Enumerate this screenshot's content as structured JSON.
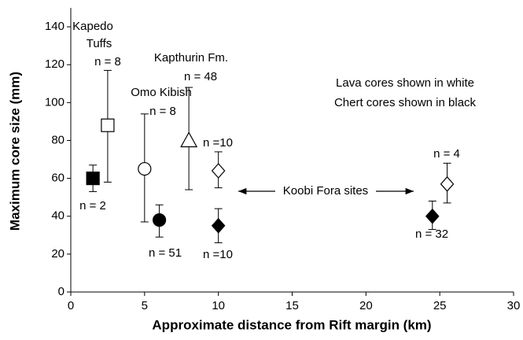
{
  "chart_data": {
    "type": "scatter",
    "xlabel": "Approximate distance from Rift margin (km)",
    "ylabel": "Maximum core size (mm)",
    "xlim": [
      0,
      30
    ],
    "xticks": [
      0,
      5,
      10,
      15,
      20,
      25,
      30
    ],
    "ylim": [
      0,
      150
    ],
    "yticks": [
      0,
      20,
      40,
      60,
      80,
      100,
      120,
      140
    ],
    "points": [
      {
        "x": 1.5,
        "y": 60,
        "low": 53,
        "high": 67,
        "marker": "square",
        "color": "#000000",
        "labels": [
          "n = 2"
        ]
      },
      {
        "x": 2.5,
        "y": 88,
        "low": 58,
        "high": 117,
        "marker": "square",
        "color": "#ffffff",
        "labels": [
          "Kapedo",
          "Tuffs",
          "n = 8"
        ]
      },
      {
        "x": 5,
        "y": 65,
        "low": 37,
        "high": 94,
        "marker": "circle",
        "color": "#ffffff",
        "labels": [
          "Omo Kibish",
          "n = 8"
        ]
      },
      {
        "x": 6,
        "y": 38,
        "low": 29,
        "high": 46,
        "marker": "circle",
        "color": "#000000",
        "labels": [
          "n = 51"
        ]
      },
      {
        "x": 8,
        "y": 80,
        "low": 54,
        "high": 108,
        "marker": "triangle",
        "color": "#ffffff",
        "labels": [
          "Kapthurin Fm.",
          "n = 48"
        ]
      },
      {
        "x": 10,
        "y": 64,
        "low": 55,
        "high": 74,
        "marker": "diamond",
        "color": "#ffffff",
        "labels": [
          "n =10"
        ]
      },
      {
        "x": 10,
        "y": 35,
        "low": 26,
        "high": 44,
        "marker": "diamond",
        "color": "#000000",
        "labels": [
          "n =10"
        ]
      },
      {
        "x": 24.5,
        "y": 40,
        "low": 33,
        "high": 48,
        "marker": "diamond",
        "color": "#000000",
        "labels": [
          "n = 32"
        ]
      },
      {
        "x": 25.5,
        "y": 57,
        "low": 47,
        "high": 68,
        "marker": "diamond",
        "color": "#ffffff",
        "labels": [
          "n = 4"
        ]
      }
    ],
    "annotations": [
      "Lava cores shown in white",
      "Chert cores shown in black",
      "Koobi Fora sites"
    ]
  }
}
